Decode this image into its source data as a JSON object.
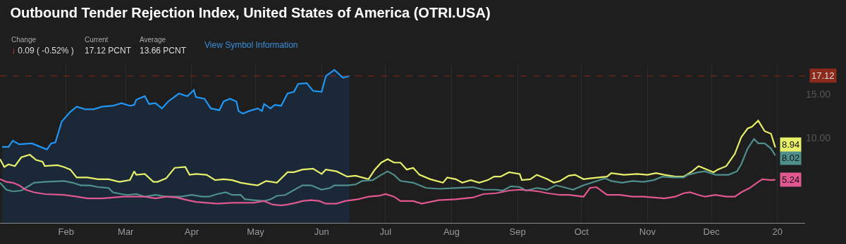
{
  "chart_data": {
    "type": "line",
    "title": "Outbound Tender Rejection Index, United States of America (OTRI.USA)",
    "annotations": [
      "Change",
      "↓ 0.09 ( -0.52% )",
      "Current",
      "17.12 PCNT",
      "Average",
      "13.66 PCNT",
      "View Symbol Information"
    ],
    "series": [
      {
        "type": "area",
        "color": "#2196f3",
        "x": [
          "2019-01-02",
          "2019-01-05",
          "2019-01-07",
          "2019-01-10",
          "2019-01-16",
          "2019-01-19",
          "2019-01-23",
          "2019-01-25",
          "2019-01-27",
          "2019-01-30",
          "2019-02-03",
          "2019-02-06",
          "2019-02-10",
          "2019-02-14",
          "2019-02-18",
          "2019-02-23",
          "2019-02-27",
          "2019-03-03",
          "2019-03-05",
          "2019-03-06",
          "2019-03-10",
          "2019-03-12",
          "2019-03-15",
          "2019-03-18",
          "2019-03-21",
          "2019-03-26",
          "2019-03-30",
          "2019-04-02",
          "2019-04-03",
          "2019-04-07",
          "2019-04-10",
          "2019-04-14",
          "2019-04-16",
          "2019-04-19",
          "2019-04-22",
          "2019-04-23",
          "2019-04-25",
          "2019-04-28",
          "2019-05-02",
          "2019-05-04",
          "2019-05-05",
          "2019-05-08",
          "2019-05-10",
          "2019-05-13",
          "2019-05-16",
          "2019-05-19",
          "2019-05-21",
          "2019-05-25",
          "2019-05-28",
          "2019-06-01",
          "2019-06-03",
          "2019-06-07",
          "2019-06-11",
          "2019-06-14"
        ],
        "values": [
          9.0,
          9.0,
          9.7,
          9.3,
          9.4,
          9.1,
          8.7,
          9.4,
          9.5,
          11.9,
          13.0,
          13.6,
          13.3,
          13.3,
          13.6,
          13.7,
          14.0,
          13.7,
          13.8,
          14.4,
          14.8,
          13.9,
          14.0,
          13.4,
          14.2,
          15.1,
          14.8,
          15.5,
          14.7,
          14.5,
          13.4,
          13.2,
          14.2,
          14.5,
          14.2,
          13.1,
          12.8,
          13.1,
          13.4,
          13.1,
          13.9,
          13.4,
          13.8,
          13.7,
          15.1,
          15.3,
          16.2,
          16.3,
          15.4,
          15.3,
          17.1,
          17.8,
          16.9,
          17.1
        ]
      },
      {
        "color": "#e8f06a",
        "x": [
          "2019-01-01",
          "2019-01-03",
          "2019-01-05",
          "2019-01-08",
          "2019-01-11",
          "2019-01-15",
          "2019-01-18",
          "2019-01-21",
          "2019-01-22",
          "2019-01-28",
          "2019-01-31",
          "2019-02-03",
          "2019-02-06",
          "2019-02-11",
          "2019-02-16",
          "2019-02-21",
          "2019-02-26",
          "2019-03-03",
          "2019-03-05",
          "2019-03-06",
          "2019-03-10",
          "2019-03-14",
          "2019-03-16",
          "2019-03-20",
          "2019-03-24",
          "2019-03-29",
          "2019-03-31",
          "2019-04-03",
          "2019-04-08",
          "2019-04-12",
          "2019-04-16",
          "2019-04-20",
          "2019-04-24",
          "2019-04-29",
          "2019-05-02",
          "2019-05-06",
          "2019-05-11",
          "2019-05-16",
          "2019-05-19",
          "2019-05-23",
          "2019-05-28",
          "2019-06-01",
          "2019-06-03",
          "2019-06-08",
          "2019-06-13",
          "2019-06-17",
          "2019-06-20",
          "2019-06-23",
          "2019-06-26",
          "2019-06-29",
          "2019-07-02",
          "2019-07-05",
          "2019-07-08",
          "2019-07-11",
          "2019-07-14",
          "2019-07-17",
          "2019-07-22",
          "2019-07-28",
          "2019-07-30",
          "2019-08-03",
          "2019-08-06",
          "2019-08-10",
          "2019-08-14",
          "2019-08-18",
          "2019-08-21",
          "2019-08-24",
          "2019-08-28",
          "2019-09-02",
          "2019-09-03",
          "2019-09-07",
          "2019-09-10",
          "2019-09-15",
          "2019-09-18",
          "2019-09-21",
          "2019-09-25",
          "2019-09-28",
          "2019-10-02",
          "2019-10-05",
          "2019-10-09",
          "2019-10-13",
          "2019-10-15",
          "2019-10-21",
          "2019-10-27",
          "2019-11-01",
          "2019-11-05",
          "2019-11-09",
          "2019-11-14",
          "2019-11-18",
          "2019-11-22",
          "2019-11-25",
          "2019-11-28",
          "2019-12-02",
          "2019-12-04",
          "2019-12-08",
          "2019-12-12",
          "2019-12-15",
          "2019-12-18",
          "2019-12-20",
          "2019-12-23",
          "2019-12-26",
          "2019-12-29",
          "2019-12-31"
        ],
        "values": [
          7.6,
          6.7,
          7.0,
          6.8,
          7.8,
          8.1,
          7.5,
          7.3,
          6.8,
          6.9,
          6.7,
          6.4,
          5.5,
          5.5,
          5.3,
          5.3,
          5.0,
          5.2,
          6.2,
          5.8,
          5.9,
          5.0,
          5.0,
          5.4,
          6.6,
          6.7,
          5.8,
          5.9,
          5.8,
          5.2,
          5.3,
          5.2,
          4.9,
          4.7,
          4.6,
          5.1,
          4.9,
          6.1,
          6.1,
          6.4,
          6.5,
          5.9,
          6.4,
          6.2,
          5.6,
          5.7,
          5.5,
          5.3,
          6.4,
          7.2,
          7.6,
          7.2,
          7.2,
          6.4,
          6.6,
          5.8,
          5.3,
          4.9,
          5.5,
          5.3,
          4.9,
          5.2,
          4.9,
          5.2,
          5.6,
          5.6,
          6.1,
          5.9,
          5.2,
          5.3,
          5.8,
          5.3,
          4.9,
          5.1,
          5.7,
          5.8,
          5.3,
          5.4,
          5.5,
          5.6,
          6.0,
          5.8,
          5.9,
          5.8,
          6.0,
          5.8,
          5.6,
          5.6,
          6.2,
          6.8,
          6.5,
          6.1,
          6.4,
          6.8,
          8.2,
          10.1,
          11.1,
          11.3,
          12.0,
          10.8,
          10.5,
          8.94
        ],
        "value_labels": [
          null,
          null,
          null,
          null,
          null,
          null,
          null,
          null,
          null,
          null,
          null,
          null,
          null,
          null,
          null,
          null,
          null,
          null,
          null,
          null,
          null,
          null,
          null,
          null,
          null,
          null,
          null,
          null,
          null,
          null,
          null,
          null,
          null,
          null,
          null,
          null,
          null,
          null,
          null,
          null,
          null,
          null,
          null,
          null,
          null,
          null,
          null,
          null,
          null,
          null,
          null,
          null,
          null,
          null,
          null,
          null,
          null,
          null,
          null,
          null,
          null,
          null,
          null,
          null,
          null,
          null,
          null,
          null,
          null,
          null,
          null,
          null,
          null,
          null,
          null,
          null,
          null,
          null,
          null,
          null,
          null,
          null,
          null,
          null,
          null,
          null,
          null,
          null,
          null,
          null,
          null,
          null,
          null,
          null,
          null,
          null,
          null,
          null,
          null,
          null,
          null,
          "8.94"
        ]
      },
      {
        "color": "#4f8f8c",
        "x": [
          "2019-01-01",
          "2019-01-04",
          "2019-01-07",
          "2019-01-11",
          "2019-01-13",
          "2019-01-17",
          "2019-01-22",
          "2019-01-31",
          "2019-02-04",
          "2019-02-08",
          "2019-02-12",
          "2019-02-16",
          "2019-02-21",
          "2019-02-23",
          "2019-02-27",
          "2019-03-02",
          "2019-03-06",
          "2019-03-10",
          "2019-03-15",
          "2019-03-20",
          "2019-03-27",
          "2019-04-01",
          "2019-04-06",
          "2019-04-09",
          "2019-04-13",
          "2019-04-17",
          "2019-04-20",
          "2019-04-24",
          "2019-04-26",
          "2019-04-30",
          "2019-05-05",
          "2019-05-08",
          "2019-05-11",
          "2019-05-15",
          "2019-05-20",
          "2019-05-23",
          "2019-05-27",
          "2019-05-29",
          "2019-06-01",
          "2019-06-05",
          "2019-06-07",
          "2019-06-13",
          "2019-06-17",
          "2019-06-20",
          "2019-06-25",
          "2019-06-29",
          "2019-07-02",
          "2019-07-05",
          "2019-07-08",
          "2019-07-14",
          "2019-07-20",
          "2019-07-26",
          "2019-08-03",
          "2019-08-11",
          "2019-08-16",
          "2019-08-22",
          "2019-08-25",
          "2019-08-29",
          "2019-09-02",
          "2019-09-05",
          "2019-09-10",
          "2019-09-15",
          "2019-09-19",
          "2019-09-24",
          "2019-09-27",
          "2019-10-02",
          "2019-10-07",
          "2019-10-12",
          "2019-10-15",
          "2019-10-20",
          "2019-10-25",
          "2019-10-30",
          "2019-11-04",
          "2019-11-08",
          "2019-11-13",
          "2019-11-18",
          "2019-11-20",
          "2019-11-25",
          "2019-11-28",
          "2019-12-03",
          "2019-12-09",
          "2019-12-13",
          "2019-12-15",
          "2019-12-18",
          "2019-12-21",
          "2019-12-23",
          "2019-12-26",
          "2019-12-29",
          "2019-12-31"
        ],
        "values": [
          4.9,
          4.1,
          3.9,
          4.0,
          4.3,
          4.9,
          5.0,
          5.1,
          4.9,
          4.6,
          4.6,
          4.4,
          4.3,
          3.8,
          3.6,
          3.5,
          3.6,
          3.3,
          3.5,
          3.3,
          3.3,
          3.5,
          3.3,
          3.3,
          3.6,
          3.8,
          3.5,
          3.5,
          3.0,
          2.9,
          2.8,
          3.0,
          3.4,
          3.5,
          4.2,
          4.6,
          4.6,
          4.4,
          4.1,
          4.3,
          4.6,
          4.6,
          4.7,
          5.1,
          5.2,
          5.8,
          6.2,
          5.8,
          5.1,
          4.9,
          4.3,
          4.2,
          4.3,
          4.4,
          4.1,
          4.1,
          4.0,
          4.5,
          4.4,
          4.0,
          4.3,
          4.1,
          4.6,
          4.3,
          4.1,
          4.6,
          5.0,
          5.4,
          5.1,
          4.9,
          5.1,
          5.0,
          5.2,
          5.6,
          5.5,
          5.5,
          5.8,
          6.1,
          6.2,
          5.8,
          5.8,
          6.2,
          7.0,
          8.8,
          9.9,
          9.4,
          9.4,
          8.8,
          8.02
        ],
        "value_labels": [
          null,
          null,
          null,
          null,
          null,
          null,
          null,
          null,
          null,
          null,
          null,
          null,
          null,
          null,
          null,
          null,
          null,
          null,
          null,
          null,
          null,
          null,
          null,
          null,
          null,
          null,
          null,
          null,
          null,
          null,
          null,
          null,
          null,
          null,
          null,
          null,
          null,
          null,
          null,
          null,
          null,
          null,
          null,
          null,
          null,
          null,
          null,
          null,
          null,
          null,
          null,
          null,
          null,
          null,
          null,
          null,
          null,
          null,
          null,
          null,
          null,
          null,
          null,
          null,
          null,
          null,
          null,
          null,
          null,
          null,
          null,
          null,
          null,
          null,
          null,
          null,
          null,
          null,
          null,
          null,
          null,
          null,
          null,
          null,
          null,
          null,
          null,
          null,
          "8.02"
        ]
      },
      {
        "color": "#e0588f",
        "x": [
          "2019-01-01",
          "2019-01-04",
          "2019-01-07",
          "2019-01-10",
          "2019-01-13",
          "2019-01-17",
          "2019-01-22",
          "2019-01-31",
          "2019-02-06",
          "2019-02-11",
          "2019-02-18",
          "2019-02-23",
          "2019-02-28",
          "2019-03-05",
          "2019-03-10",
          "2019-03-15",
          "2019-03-20",
          "2019-03-25",
          "2019-03-30",
          "2019-04-03",
          "2019-04-08",
          "2019-04-13",
          "2019-04-20",
          "2019-04-26",
          "2019-04-30",
          "2019-05-05",
          "2019-05-09",
          "2019-05-13",
          "2019-05-16",
          "2019-05-20",
          "2019-05-23",
          "2019-05-27",
          "2019-05-31",
          "2019-06-03",
          "2019-06-08",
          "2019-06-12",
          "2019-06-18",
          "2019-06-23",
          "2019-06-28",
          "2019-07-01",
          "2019-07-05",
          "2019-07-08",
          "2019-07-14",
          "2019-07-18",
          "2019-07-26",
          "2019-08-03",
          "2019-08-11",
          "2019-08-16",
          "2019-08-22",
          "2019-08-28",
          "2019-09-02",
          "2019-09-07",
          "2019-09-11",
          "2019-09-15",
          "2019-09-21",
          "2019-09-25",
          "2019-10-02",
          "2019-10-05",
          "2019-10-08",
          "2019-10-13",
          "2019-10-19",
          "2019-10-25",
          "2019-10-30",
          "2019-11-04",
          "2019-11-09",
          "2019-11-14",
          "2019-11-18",
          "2019-11-21",
          "2019-11-25",
          "2019-11-28",
          "2019-12-03",
          "2019-12-08",
          "2019-12-12",
          "2019-12-15",
          "2019-12-19",
          "2019-12-23",
          "2019-12-25",
          "2019-12-29",
          "2019-12-31"
        ],
        "values": [
          5.3,
          5.0,
          4.9,
          4.6,
          4.1,
          3.8,
          3.6,
          3.5,
          3.3,
          3.1,
          3.1,
          3.2,
          3.3,
          3.3,
          3.3,
          3.1,
          3.3,
          3.2,
          2.9,
          2.7,
          2.6,
          2.5,
          2.6,
          2.6,
          2.6,
          2.8,
          2.4,
          2.3,
          2.4,
          2.6,
          2.8,
          2.9,
          2.8,
          2.5,
          2.5,
          2.8,
          3.0,
          3.3,
          3.4,
          3.6,
          3.3,
          2.8,
          2.8,
          2.5,
          2.9,
          3.0,
          3.2,
          3.6,
          3.7,
          4.0,
          4.1,
          4.0,
          3.9,
          3.7,
          3.5,
          3.5,
          3.3,
          4.3,
          4.4,
          3.5,
          3.5,
          3.3,
          3.3,
          3.2,
          3.1,
          3.3,
          3.7,
          3.8,
          3.5,
          3.3,
          3.5,
          3.3,
          3.3,
          3.8,
          4.3,
          5.0,
          5.3,
          5.2,
          5.24
        ],
        "value_labels": [
          null,
          null,
          null,
          null,
          null,
          null,
          null,
          null,
          null,
          null,
          null,
          null,
          null,
          null,
          null,
          null,
          null,
          null,
          null,
          null,
          null,
          null,
          null,
          null,
          null,
          null,
          null,
          null,
          null,
          null,
          null,
          null,
          null,
          null,
          null,
          null,
          null,
          null,
          null,
          null,
          null,
          null,
          null,
          null,
          null,
          null,
          null,
          null,
          null,
          null,
          null,
          null,
          null,
          null,
          null,
          null,
          null,
          null,
          null,
          null,
          null,
          null,
          null,
          null,
          null,
          null,
          null,
          null,
          null,
          null,
          null,
          null,
          null,
          null,
          null,
          null,
          null,
          null,
          "5.24"
        ]
      }
    ],
    "ref_lines": [
      {
        "axis": "y",
        "value": 17.12,
        "label": "17.12",
        "color": "#8b2a1a",
        "line_style": "dashed"
      }
    ],
    "xlim": [
      "2019-01-01",
      "2020-01-14"
    ],
    "xticks": [
      {
        "value": "2019-02-01",
        "label": "Feb"
      },
      {
        "value": "2019-03-01",
        "label": "Mar"
      },
      {
        "value": "2019-04-01",
        "label": "Apr"
      },
      {
        "value": "2019-05-01",
        "label": "May"
      },
      {
        "value": "2019-06-01",
        "label": "Jun"
      },
      {
        "value": "2019-07-01",
        "label": "Jul"
      },
      {
        "value": "2019-08-01",
        "label": "Aug"
      },
      {
        "value": "2019-09-01",
        "label": "Sep"
      },
      {
        "value": "2019-10-01",
        "label": "Oct"
      },
      {
        "value": "2019-11-01",
        "label": "Nov"
      },
      {
        "value": "2019-12-01",
        "label": "Dec"
      },
      {
        "value": "2020-01-01",
        "label": "20"
      }
    ],
    "ylim": [
      0.3,
      18.4
    ],
    "yticks": [
      {
        "value": 10,
        "label": "10.00"
      },
      {
        "value": 15,
        "label": "15.00"
      }
    ],
    "grid": "x",
    "marker": "none",
    "line_style": "solid"
  }
}
